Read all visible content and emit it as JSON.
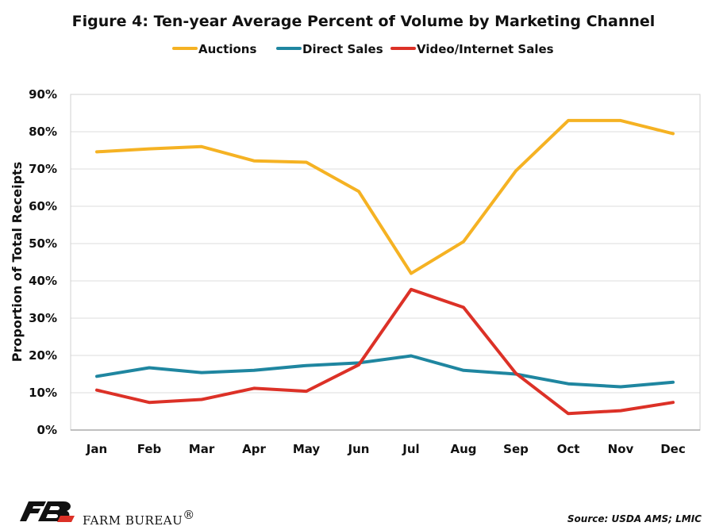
{
  "chart_data": {
    "type": "line",
    "title": "Figure 4: Ten-year Average Percent of Volume by Marketing Channel",
    "ylabel": "Proportion of Total Receipts",
    "xlabel": "",
    "categories": [
      "Jan",
      "Feb",
      "Mar",
      "Apr",
      "May",
      "Jun",
      "Jul",
      "Aug",
      "Sep",
      "Oct",
      "Nov",
      "Dec"
    ],
    "ylim": [
      0,
      90
    ],
    "yticks": [
      0,
      10,
      20,
      30,
      40,
      50,
      60,
      70,
      80,
      90
    ],
    "ytick_labels": [
      "0%",
      "10%",
      "20%",
      "30%",
      "40%",
      "50%",
      "60%",
      "70%",
      "80%",
      "90%"
    ],
    "grid": true,
    "legend_position": "top",
    "series": [
      {
        "name": "Auctions",
        "color": "#f5b223",
        "values": [
          74.6,
          75.4,
          76.0,
          72.2,
          71.8,
          64.0,
          42.0,
          50.5,
          69.5,
          83.0,
          83.0,
          79.5
        ]
      },
      {
        "name": "Direct Sales",
        "color": "#1f86a0",
        "values": [
          14.4,
          16.7,
          15.4,
          16.0,
          17.3,
          18.0,
          19.9,
          16.0,
          15.0,
          12.4,
          11.6,
          12.8
        ]
      },
      {
        "name": "Video/Internet Sales",
        "color": "#dc3127",
        "values": [
          10.7,
          7.4,
          8.2,
          11.2,
          10.4,
          17.5,
          37.7,
          32.9,
          15.2,
          4.4,
          5.2,
          7.4
        ]
      }
    ]
  },
  "footer": {
    "brand_name": "FARM BUREAU",
    "brand_mark": "®",
    "logo_letters": "FB",
    "source": "Source: USDA AMS; LMIC"
  }
}
